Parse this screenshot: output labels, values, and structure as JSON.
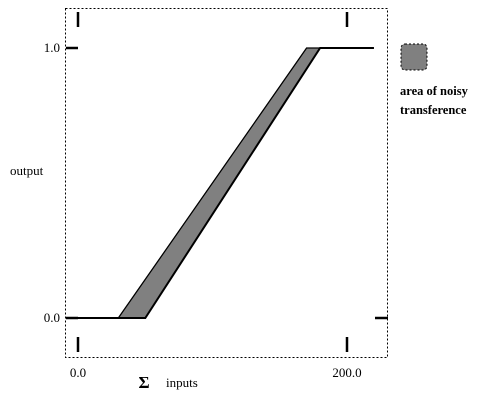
{
  "y_axis": {
    "label": "output",
    "ticks": [
      {
        "label": "1.0",
        "value": 1.0
      },
      {
        "label": "0.0",
        "value": 0.0
      }
    ],
    "range": [
      0.0,
      1.0
    ]
  },
  "x_axis": {
    "symbol": "Σ",
    "label": "inputs",
    "ticks": [
      {
        "label": "0.0",
        "value": 0.0
      },
      {
        "label": "200.0",
        "value": 200.0
      }
    ],
    "range": [
      0.0,
      200.0
    ]
  },
  "transfer": {
    "lower_curve": [
      [
        -10.0,
        0.0
      ],
      [
        50.0,
        0.0
      ],
      [
        180.0,
        1.0
      ],
      [
        220.0,
        1.0
      ]
    ],
    "upper_curve": [
      [
        -10.0,
        0.0
      ],
      [
        30.0,
        0.0
      ],
      [
        170.0,
        1.0
      ],
      [
        220.0,
        1.0
      ]
    ],
    "band": [
      [
        30.0,
        0.0
      ],
      [
        50.0,
        0.0
      ],
      [
        180.0,
        1.0
      ],
      [
        170.0,
        1.0
      ]
    ]
  },
  "legend": {
    "line1": "area of noisy",
    "line2": "transference",
    "swatch_color": "#808080"
  },
  "colors": {
    "band_fill": "#808080",
    "line": "#000000"
  }
}
